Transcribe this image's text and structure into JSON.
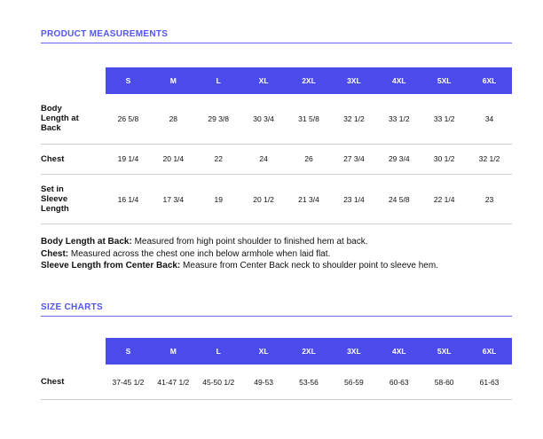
{
  "colors": {
    "accent_bar": "#4b4bec",
    "heading_text": "#5353f1",
    "rule": "#6565f2",
    "row_divider": "#cccccc",
    "text": "#111111"
  },
  "sections": [
    {
      "heading": "PRODUCT MEASUREMENTS",
      "table": {
        "sizes": [
          "S",
          "M",
          "L",
          "XL",
          "2XL",
          "3XL",
          "4XL",
          "5XL",
          "6XL"
        ],
        "rows": [
          {
            "label": "Body Length at Back",
            "values": [
              "26 5/8",
              "28",
              "29 3/8",
              "30 3/4",
              "31 5/8",
              "32 1/2",
              "33 1/2",
              "33 1/2",
              "34"
            ]
          },
          {
            "label": "Chest",
            "values": [
              "19 1/4",
              "20 1/4",
              "22",
              "24",
              "26",
              "27 3/4",
              "29 3/4",
              "30 1/2",
              "32 1/2"
            ]
          },
          {
            "label": "Set in Sleeve Length",
            "values": [
              "16 1/4",
              "17 3/4",
              "19",
              "20 1/2",
              "21 3/4",
              "23 1/4",
              "24 5/8",
              "22 1/4",
              "23"
            ]
          }
        ]
      },
      "notes": [
        {
          "term": "Body Length at Back:",
          "definition": "Measured from high point shoulder to finished hem at back."
        },
        {
          "term": "Chest:",
          "definition": "Measured across the chest one inch below armhole when laid flat."
        },
        {
          "term": "Sleeve Length from Center Back:",
          "definition": "Measure from Center Back neck to shoulder point to sleeve hem."
        }
      ]
    },
    {
      "heading": "SIZE CHARTS",
      "table": {
        "sizes": [
          "S",
          "M",
          "L",
          "XL",
          "2XL",
          "3XL",
          "4XL",
          "5XL",
          "6XL"
        ],
        "rows": [
          {
            "label": "Chest",
            "values": [
              "37-45 1/2",
              "41-47 1/2",
              "45-50 1/2",
              "49-53",
              "53-56",
              "56-59",
              "60-63",
              "58-60",
              "61-63"
            ]
          }
        ]
      }
    }
  ]
}
